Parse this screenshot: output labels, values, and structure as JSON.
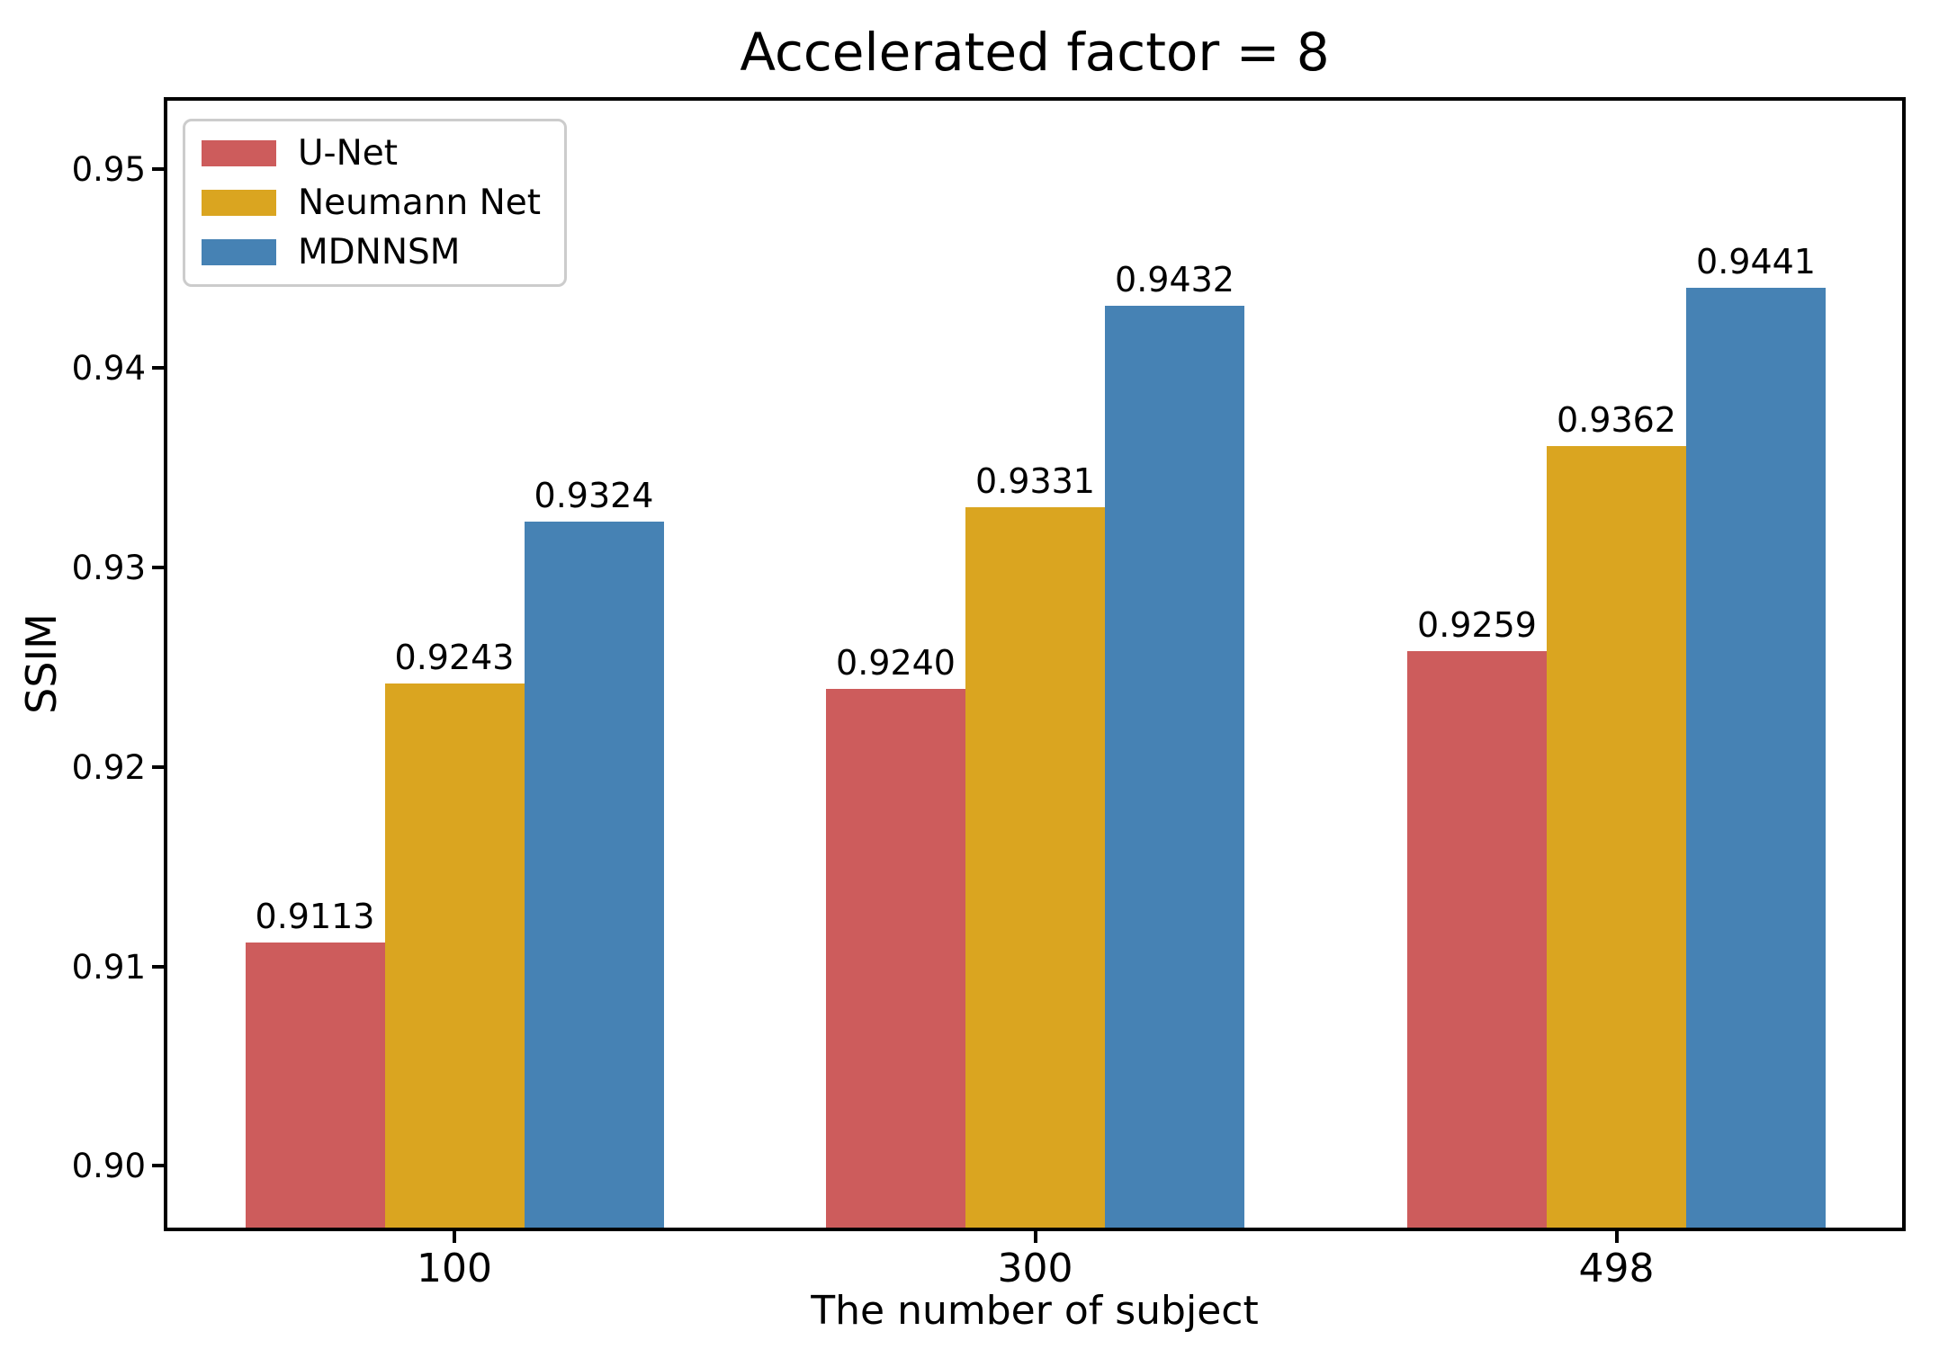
{
  "chart_data": {
    "type": "bar",
    "title": "Accelerated factor = 8",
    "xlabel": "The number of subject",
    "ylabel": "SSIM",
    "categories": [
      "100",
      "300",
      "498"
    ],
    "series": [
      {
        "name": "U-Net",
        "color": "#CD5C5C",
        "values": [
          0.9113,
          0.924,
          0.9259
        ],
        "labels": [
          "0.9113",
          "0.9240",
          "0.9259"
        ]
      },
      {
        "name": "Neumann Net",
        "color": "#DAA520",
        "values": [
          0.9243,
          0.9331,
          0.9362
        ],
        "labels": [
          "0.9243",
          "0.9331",
          "0.9362"
        ]
      },
      {
        "name": "MDNNSM",
        "color": "#4682B4",
        "values": [
          0.9324,
          0.9432,
          0.9441
        ],
        "labels": [
          "0.9324",
          "0.9432",
          "0.9441"
        ]
      }
    ],
    "ylim": [
      0.897,
      0.9535
    ],
    "yticks": [
      0.9,
      0.91,
      0.92,
      0.93,
      0.94,
      0.95
    ],
    "ytick_labels": [
      "0.90",
      "0.91",
      "0.92",
      "0.93",
      "0.94",
      "0.95"
    ],
    "grid": false,
    "legend_position": "upper left",
    "value_labels": true,
    "spine_color": "#000000",
    "background_color": "#ffffff"
  }
}
